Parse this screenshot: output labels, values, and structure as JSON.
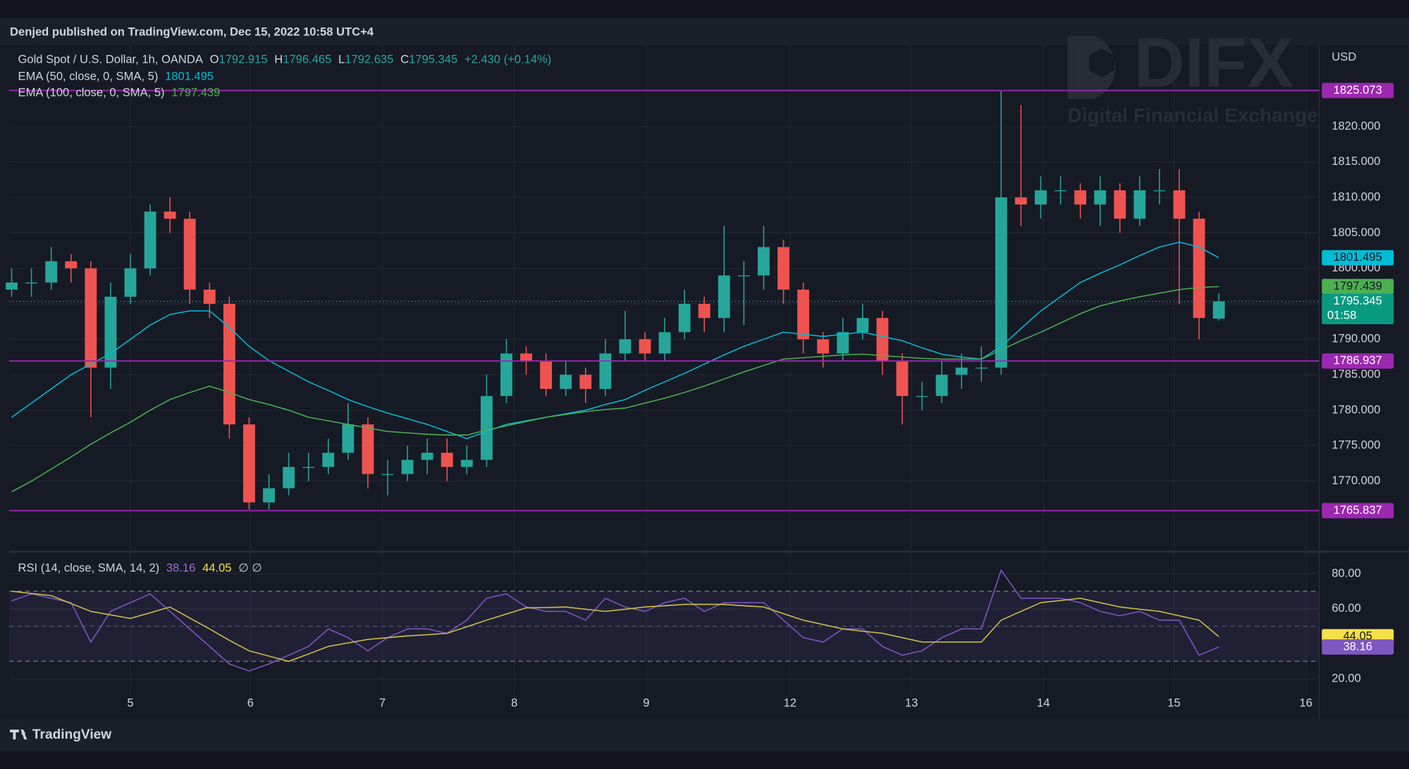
{
  "header": {
    "text": "Denjed published on TradingView.com, Dec 15, 2022 10:58 UTC+4"
  },
  "watermark": {
    "logo": "DIFX",
    "tagline": "Digital Financial Exchange"
  },
  "footer": {
    "brand": "TradingView"
  },
  "chart_data": [
    {
      "type": "candlestick",
      "title": "Gold Spot / U.S. Dollar, 1h, OANDA",
      "ohlc_letters": [
        "O",
        "H",
        "L",
        "C"
      ],
      "change": "+2.430 (+0.14%)",
      "currency": "USD",
      "countdown": "01:58",
      "up_color": "#26a69a",
      "down_color": "#ef5350",
      "xlim": [
        0.08,
        10.01
      ],
      "ylim": [
        1760.3,
        1831.5
      ],
      "yticks": [
        {
          "value": 1770,
          "label": "1770.000"
        },
        {
          "value": 1775,
          "label": "1775.000"
        },
        {
          "value": 1780,
          "label": "1780.000"
        },
        {
          "value": 1785,
          "label": "1785.000"
        },
        {
          "value": 1790,
          "label": "1790.000"
        },
        {
          "value": 1795,
          "label": "1795.000"
        },
        {
          "value": 1800,
          "label": "1800.000"
        },
        {
          "value": 1805,
          "label": "1805.000"
        },
        {
          "value": 1810,
          "label": "1810.000"
        },
        {
          "value": 1815,
          "label": "1815.000"
        },
        {
          "value": 1820,
          "label": "1820.000"
        }
      ],
      "grid": true,
      "hlines": [
        {
          "value": 1825.073,
          "color": "#9c27b0"
        },
        {
          "value": 1786.937,
          "color": "#9c27b0"
        },
        {
          "value": 1765.837,
          "color": "#9c27b0"
        }
      ],
      "x": [
        0.1,
        0.25,
        0.4,
        0.55,
        0.7,
        0.85,
        1.0,
        1.15,
        1.3,
        1.45,
        1.6,
        1.75,
        1.9,
        2.05,
        2.2,
        2.35,
        2.5,
        2.65,
        2.8,
        2.95,
        3.1,
        3.25,
        3.4,
        3.55,
        3.7,
        3.85,
        4.0,
        4.15,
        4.3,
        4.45,
        4.6,
        4.75,
        4.9,
        5.05,
        5.2,
        5.35,
        5.5,
        5.65,
        5.8,
        5.95,
        6.1,
        6.25,
        6.4,
        6.55,
        6.7,
        6.85,
        7.0,
        7.15,
        7.3,
        7.45,
        7.6,
        7.75,
        7.9,
        8.05,
        8.2,
        8.35,
        8.5,
        8.65,
        8.8,
        8.95,
        9.1,
        9.25
      ],
      "open": [
        1797,
        1798,
        1798,
        1801,
        1800,
        1786,
        1796,
        1800,
        1808,
        1807,
        1797,
        1795,
        1778,
        1767,
        1769,
        1772,
        1772,
        1774,
        1778,
        1771,
        1771,
        1773,
        1774,
        1772,
        1773,
        1782,
        1788,
        1787,
        1783,
        1785,
        1783,
        1788,
        1790,
        1788,
        1791,
        1795,
        1793,
        1799,
        1799,
        1803,
        1797,
        1790,
        1788,
        1791,
        1793,
        1787,
        1782,
        1782,
        1785,
        1786,
        1786,
        1810,
        1809,
        1811,
        1811,
        1809,
        1811,
        1807,
        1811,
        1811,
        1807,
        1792.915
      ],
      "high": [
        1800,
        1800,
        1803,
        1802,
        1801,
        1798,
        1802,
        1809,
        1810,
        1808,
        1798,
        1796,
        1779,
        1771,
        1774,
        1774,
        1776,
        1781,
        1779,
        1773,
        1775,
        1776,
        1776,
        1775,
        1785,
        1790,
        1789,
        1788,
        1787,
        1786,
        1790,
        1794,
        1791,
        1793,
        1797,
        1796,
        1806,
        1801,
        1806,
        1804,
        1798,
        1791,
        1793,
        1795,
        1794,
        1788,
        1784,
        1787,
        1788,
        1789,
        1825.073,
        1823,
        1813,
        1813,
        1812,
        1813,
        1812,
        1813,
        1814,
        1814,
        1808,
        1796.465
      ],
      "low": [
        1796,
        1796,
        1797,
        1798,
        1779,
        1783,
        1795,
        1799,
        1805,
        1795,
        1793,
        1776,
        1766,
        1766,
        1768,
        1770,
        1771,
        1773,
        1769,
        1768,
        1770,
        1771,
        1770,
        1771,
        1772,
        1781,
        1785,
        1782,
        1782,
        1781,
        1782,
        1787,
        1787,
        1787,
        1790,
        1791,
        1791,
        1792,
        1797,
        1795,
        1788,
        1786,
        1787,
        1790,
        1785,
        1778,
        1780,
        1781,
        1783,
        1784,
        1785,
        1806,
        1807,
        1809,
        1807,
        1806,
        1805,
        1806,
        1809,
        1795,
        1790,
        1792.635
      ],
      "close": [
        1798,
        1798,
        1801,
        1800,
        1786,
        1796,
        1800,
        1808,
        1807,
        1797,
        1795,
        1778,
        1767,
        1769,
        1772,
        1772,
        1774,
        1778,
        1771,
        1771,
        1773,
        1774,
        1772,
        1773,
        1782,
        1788,
        1787,
        1783,
        1785,
        1783,
        1788,
        1790,
        1788,
        1791,
        1795,
        1793,
        1799,
        1799,
        1803,
        1797,
        1790,
        1788,
        1791,
        1793,
        1787,
        1782,
        1782,
        1785,
        1786,
        1786,
        1810,
        1809,
        1811,
        1811,
        1809,
        1811,
        1807,
        1811,
        1811,
        1807,
        1793,
        1795.345
      ],
      "series": [
        {
          "name": "EMA (50, close, 0, SMA, 5)",
          "color": "#00bcd4",
          "values": [
            1779,
            1781,
            1783,
            1785,
            1786.5,
            1788,
            1790,
            1792,
            1793.5,
            1794,
            1794,
            1791.7,
            1789,
            1787,
            1785.5,
            1784,
            1782.8,
            1781.5,
            1780.5,
            1779.6,
            1778.8,
            1778,
            1777,
            1776,
            1777,
            1778,
            1778.5,
            1779,
            1779.5,
            1780,
            1780.8,
            1781.5,
            1782.8,
            1784,
            1785.2,
            1786.5,
            1787.8,
            1789,
            1790,
            1791,
            1790.7,
            1790.4,
            1790.7,
            1791,
            1790.4,
            1789.8,
            1788.8,
            1787.9,
            1787.5,
            1787.2,
            1789,
            1791.5,
            1794,
            1796,
            1798,
            1799.3,
            1800.5,
            1801.8,
            1803,
            1803.7,
            1803,
            1801.495
          ]
        },
        {
          "name": "EMA (100, close, 0, SMA, 5)",
          "color": "#4caf50",
          "values": [
            1768.5,
            1770,
            1771.7,
            1773.4,
            1775.2,
            1776.8,
            1778.3,
            1780,
            1781.5,
            1782.5,
            1783.4,
            1782.5,
            1781.5,
            1780.8,
            1780,
            1779,
            1778.5,
            1778,
            1777.5,
            1777,
            1776.8,
            1776.6,
            1776.5,
            1776.5,
            1777.2,
            1777.8,
            1778.4,
            1779,
            1779.4,
            1779.8,
            1780.1,
            1780.3,
            1781,
            1781.7,
            1782.5,
            1783.4,
            1784.4,
            1785.4,
            1786.3,
            1787.2,
            1787.4,
            1787.6,
            1787.8,
            1787.9,
            1787.7,
            1787.5,
            1787.3,
            1787.2,
            1787.2,
            1787.2,
            1788.5,
            1789.8,
            1791,
            1792.3,
            1793.6,
            1794.7,
            1795.4,
            1796,
            1796.5,
            1797,
            1797.3,
            1797.439
          ]
        }
      ]
    },
    {
      "type": "line",
      "title": "RSI (14, close, SMA, 14, 2)",
      "extra": "∅ ∅",
      "xlim": [
        0.08,
        10.01
      ],
      "ylim": [
        10,
        91
      ],
      "yticks": [
        {
          "value": 20,
          "label": "20.00"
        },
        {
          "value": 60,
          "label": "60.00"
        },
        {
          "value": 80,
          "label": "80.00"
        }
      ],
      "band": [
        30,
        70
      ],
      "band_mid": 50,
      "xticks": [
        {
          "value": 1.0,
          "label": "5"
        },
        {
          "value": 1.91,
          "label": "6"
        },
        {
          "value": 2.91,
          "label": "7"
        },
        {
          "value": 3.91,
          "label": "8"
        },
        {
          "value": 4.91,
          "label": "9"
        },
        {
          "value": 6.0,
          "label": "12"
        },
        {
          "value": 6.92,
          "label": "13"
        },
        {
          "value": 7.92,
          "label": "14"
        },
        {
          "value": 8.91,
          "label": "15"
        },
        {
          "value": 9.91,
          "label": "16"
        }
      ],
      "x": [
        0.1,
        0.25,
        0.4,
        0.55,
        0.7,
        0.85,
        1.0,
        1.15,
        1.3,
        1.45,
        1.6,
        1.75,
        1.9,
        2.05,
        2.2,
        2.35,
        2.5,
        2.65,
        2.8,
        2.95,
        3.1,
        3.25,
        3.4,
        3.55,
        3.7,
        3.85,
        4.0,
        4.15,
        4.3,
        4.45,
        4.6,
        4.75,
        4.9,
        5.05,
        5.2,
        5.35,
        5.5,
        5.65,
        5.8,
        5.95,
        6.1,
        6.25,
        6.4,
        6.55,
        6.7,
        6.85,
        7.0,
        7.15,
        7.3,
        7.45,
        7.6,
        7.75,
        7.9,
        8.05,
        8.2,
        8.35,
        8.5,
        8.65,
        8.8,
        8.95,
        9.1,
        9.25
      ],
      "series": [
        {
          "color": "#7e57c2",
          "values": [
            64.5,
            68.5,
            66,
            63.5,
            41,
            58.5,
            63.5,
            68.5,
            58.5,
            48.5,
            38.5,
            28.5,
            24.5,
            28.5,
            33.5,
            38.5,
            48.5,
            43.5,
            36,
            43.5,
            48.5,
            48.5,
            46,
            53.5,
            66,
            68.5,
            61,
            58.5,
            58.5,
            53.5,
            66,
            61,
            58.5,
            63.5,
            66,
            58.5,
            63.5,
            63.5,
            63.5,
            53.5,
            43.5,
            41,
            48.5,
            48.5,
            38.5,
            33.5,
            36,
            43.5,
            48.5,
            48.5,
            82,
            66,
            66,
            66,
            63.5,
            58.5,
            56,
            58.5,
            53.5,
            53.5,
            33.5,
            38.16
          ]
        },
        {
          "color": "#d4c14a",
          "values": [
            70,
            68.7,
            67.5,
            63,
            58.5,
            56.5,
            54.5,
            57.7,
            61,
            54.7,
            48.5,
            42,
            36,
            33,
            30,
            34.2,
            38.5,
            40.5,
            42.5,
            43.5,
            44.5,
            45.2,
            46,
            49.7,
            53.5,
            57,
            60.5,
            60.7,
            61,
            59.7,
            58.5,
            59.7,
            61,
            61.7,
            62.5,
            62.5,
            62.5,
            61.7,
            61,
            57.2,
            53.5,
            51,
            48.5,
            47.2,
            46,
            43.5,
            41,
            41,
            41,
            41,
            53.5,
            58.5,
            63.5,
            64.7,
            66,
            63.5,
            61,
            59.7,
            58.5,
            56,
            53.5,
            44.05
          ]
        }
      ]
    }
  ]
}
